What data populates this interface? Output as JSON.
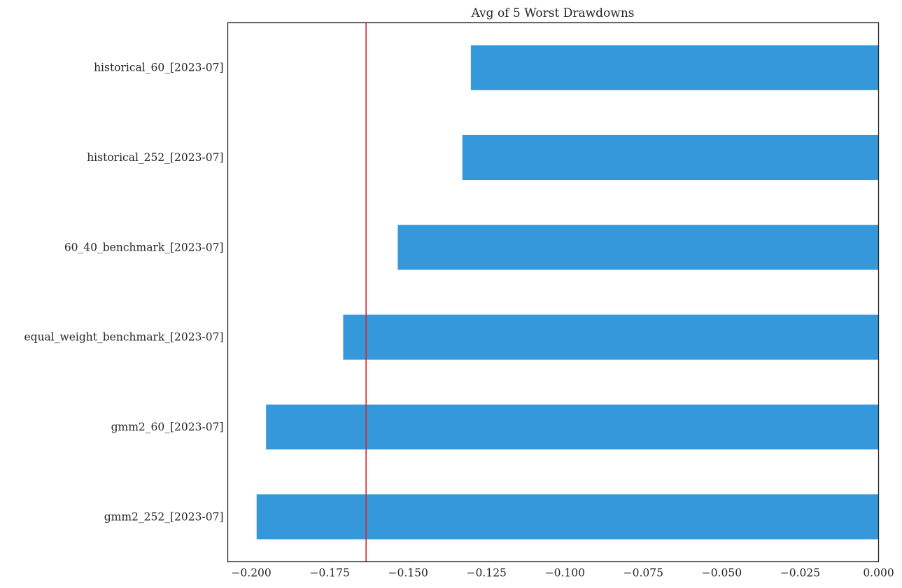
{
  "chart_data": {
    "type": "bar",
    "orientation": "horizontal",
    "title": "Avg of 5 Worst Drawdowns",
    "xlabel": "",
    "ylabel": "",
    "categories": [
      "historical_60_[2023-07]",
      "historical_252_[2023-07]",
      "60_40_benchmark_[2023-07]",
      "equal_weight_benchmark_[2023-07]",
      "gmm2_60_[2023-07]",
      "gmm2_252_[2023-07]"
    ],
    "values": [
      -0.13,
      -0.1327,
      -0.1533,
      -0.1707,
      -0.1953,
      -0.1983
    ],
    "xlim": [
      -0.2075,
      0.0
    ],
    "xticks": [
      -0.2,
      -0.175,
      -0.15,
      -0.125,
      -0.1,
      -0.075,
      -0.05,
      -0.025,
      0.0
    ],
    "xtick_labels": [
      "−0.200",
      "−0.175",
      "−0.150",
      "−0.125",
      "−0.100",
      "−0.075",
      "−0.050",
      "−0.025",
      "0.000"
    ],
    "reference_line": {
      "axis": "x",
      "value": -0.1634,
      "color": "#d62728"
    },
    "bar_color": "#3498db",
    "grid": false,
    "legend": "none"
  }
}
